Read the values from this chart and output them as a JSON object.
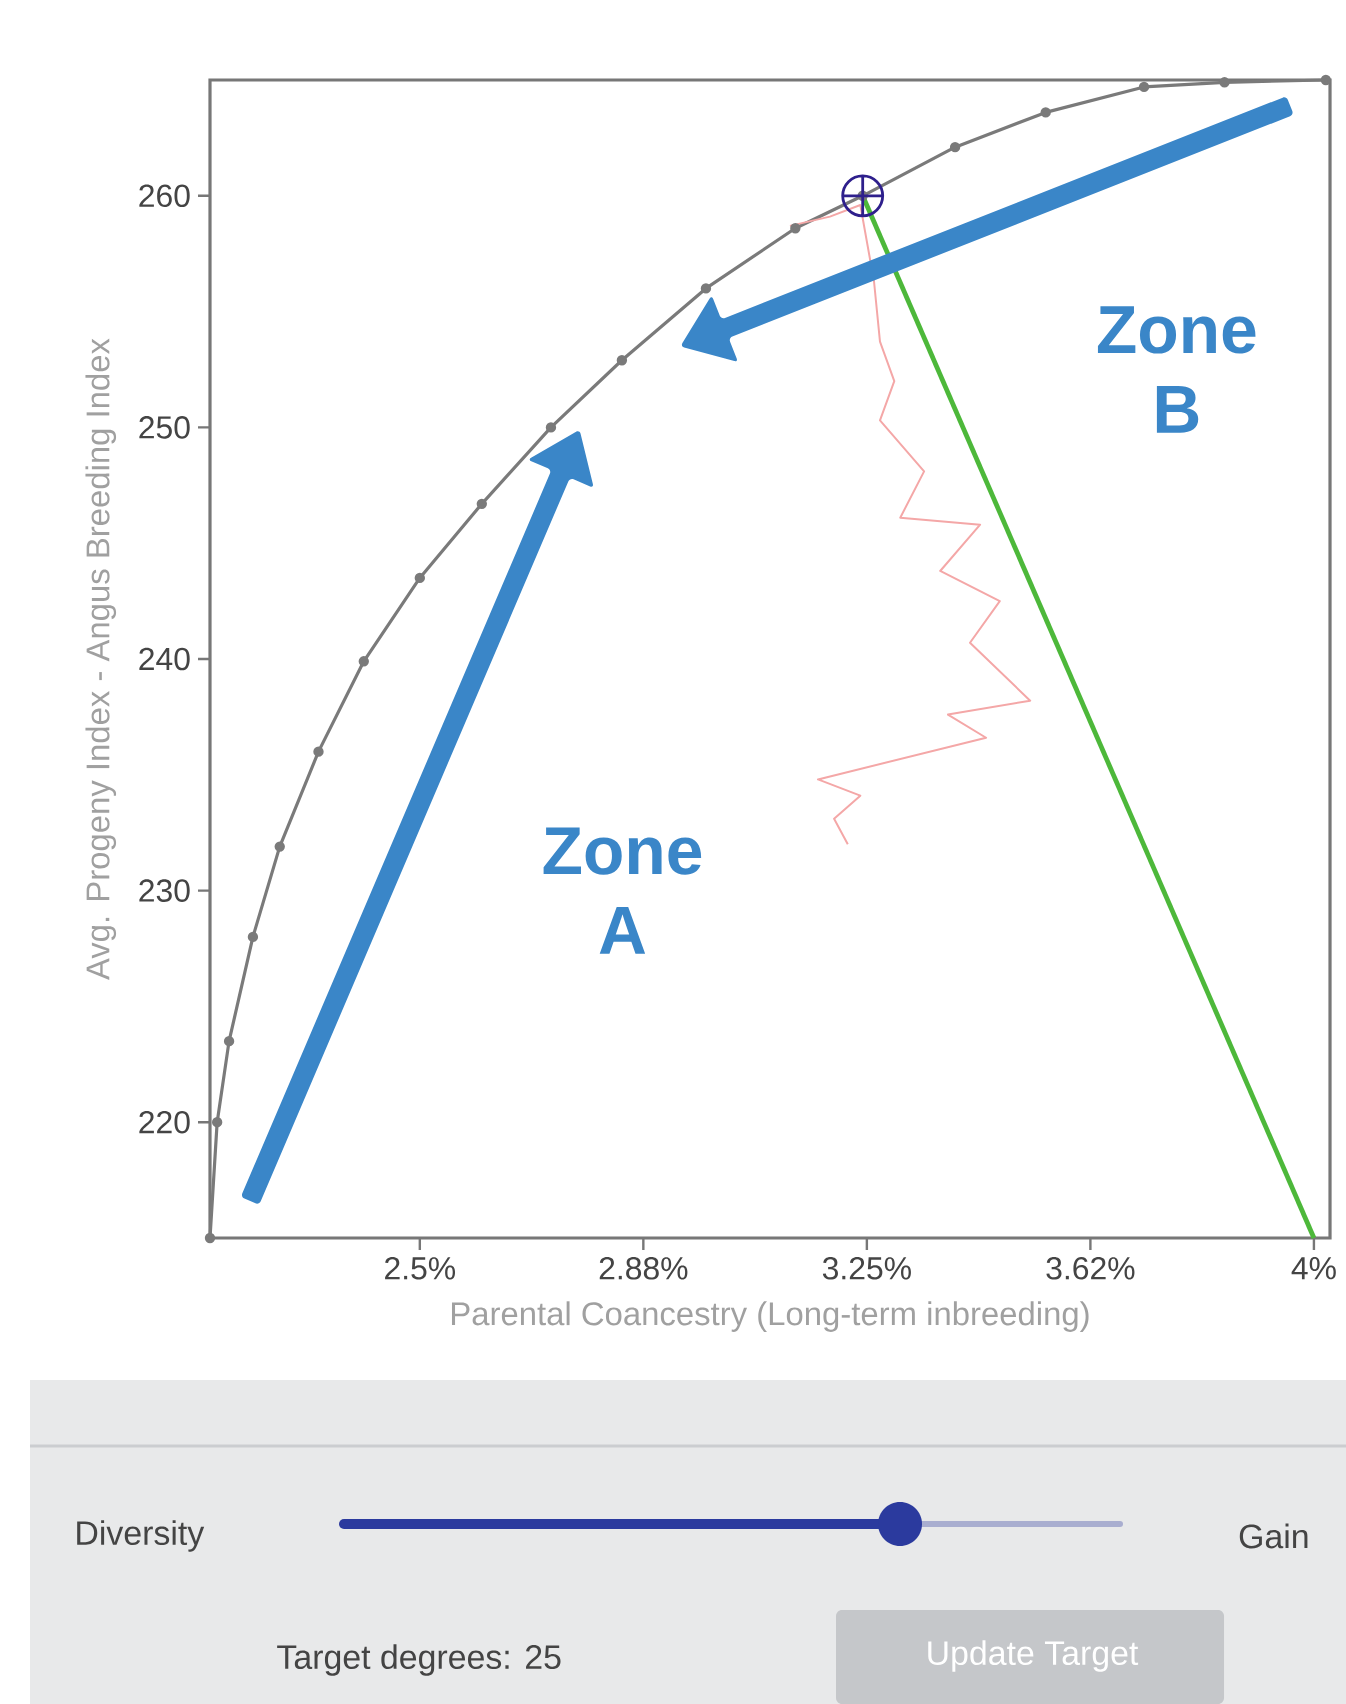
{
  "chart_data": {
    "type": "line",
    "xlabel": "Parental Coancestry (Long-term inbreeding)",
    "ylabel": "Avg. Progeny Index - Angus Breeding Index",
    "xlim": [
      2.148,
      4.027
    ],
    "ylim": [
      215,
      265
    ],
    "xticks": [
      {
        "value": 2.5,
        "label": "2.5%"
      },
      {
        "value": 2.875,
        "label": "2.88%"
      },
      {
        "value": 3.25,
        "label": "3.25%"
      },
      {
        "value": 3.625,
        "label": "3.62%"
      },
      {
        "value": 4.0,
        "label": "4%"
      }
    ],
    "yticks": [
      220,
      230,
      240,
      250,
      260
    ],
    "grid": false,
    "series": [
      {
        "type": "line",
        "color": "#7a7a7a",
        "marker": "circle",
        "x": [
          2.148,
          2.16,
          2.18,
          2.22,
          2.265,
          2.33,
          2.406,
          2.5,
          2.604,
          2.72,
          2.839,
          2.98,
          3.13,
          3.243,
          3.398,
          3.55,
          3.715,
          3.85,
          4.02
        ],
        "values": [
          215,
          220,
          223.5,
          228,
          231.9,
          236,
          239.9,
          243.5,
          246.7,
          250,
          252.9,
          256,
          258.6,
          260,
          262.1,
          263.6,
          264.7,
          264.9,
          265
        ]
      },
      {
        "type": "line",
        "color": "#f4a7a7",
        "marker": "none",
        "x": [
          3.121,
          3.188,
          3.239,
          3.262,
          3.272,
          3.296,
          3.272,
          3.346,
          3.306,
          3.44,
          3.373,
          3.473,
          3.423,
          3.524,
          3.386,
          3.45,
          3.168,
          3.239,
          3.195,
          3.218
        ],
        "values": [
          258.7,
          259.1,
          259.6,
          256.3,
          253.7,
          252.0,
          250.3,
          248.1,
          246.1,
          245.8,
          243.8,
          242.5,
          240.7,
          238.2,
          237.6,
          236.6,
          234.8,
          234.1,
          233.1,
          232.0
        ]
      },
      {
        "type": "line",
        "color": "#4db83a",
        "marker": "none",
        "x": [
          3.243,
          4.0
        ],
        "values": [
          260,
          215
        ]
      },
      {
        "type": "scatter",
        "color": "#2e1f8c",
        "marker": "cross",
        "x": [
          3.243
        ],
        "values": [
          260
        ]
      }
    ],
    "annotations": [
      "Zone A",
      "Zone B",
      "Diversity",
      "Gain",
      "Target degrees: 25",
      "Update Target"
    ]
  }
}
